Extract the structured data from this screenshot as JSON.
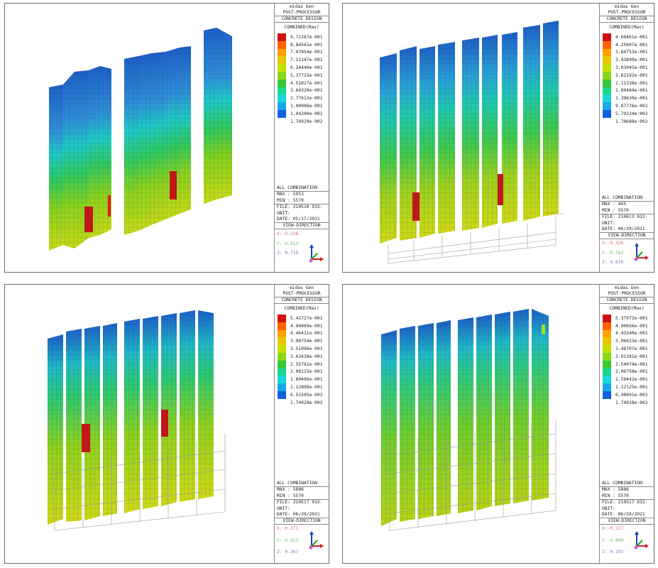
{
  "legend_colors": [
    "#d01010",
    "#ff6400",
    "#ffa200",
    "#e6c800",
    "#c8e000",
    "#88d818",
    "#38c838",
    "#18d890",
    "#18d8d8",
    "#18a8e8",
    "#1060e0"
  ],
  "panels": [
    {
      "app": "midas Gen",
      "module": "POST-PROCESSOR",
      "design": "CONCRETE DESIGN",
      "result": "COMBINED(Max)",
      "values": [
        "9.71267e-001",
        "8.84561e-001",
        "7.97854e-001",
        "7.11147e-001",
        "6.24440e-001",
        "5.37733e-001",
        "4.51027e-001",
        "3.64320e-001",
        "2.77613e-001",
        "1.90906e-001",
        "1.04200e-001",
        "1.74929e-002"
      ],
      "combination": "ALL COMBINATION",
      "max": "MAX : 5953",
      "min": "MIN : 5570",
      "file": "FILE: 210510 932-",
      "unit": "UNIT:",
      "date": "DATE: 05/17/2021",
      "view_title": "VIEW-DIRECTION",
      "vx": "X:-0.326",
      "vy": "Y:-0.613",
      "vz": "Z: 0.719"
    },
    {
      "app": "midas Gen",
      "module": "POST-PROCESSOR",
      "design": "CONCRETE DESIGN",
      "result": "COMBINED(Max)",
      "values": [
        "4.66461e-001",
        "4.25607e-001",
        "3.84753e-001",
        "3.43899e-001",
        "3.03045e-001",
        "2.62192e-001",
        "2.21338e-001",
        "1.80484e-001",
        "1.39630e-001",
        "9.87776e-002",
        "5.79224e-002",
        "1.70688e-002"
      ],
      "combination": "ALL COMBINATION",
      "max": "MAX : 445",
      "min": "MIN : 5570",
      "file": "FILE: 210613 932-",
      "unit": "UNIT:",
      "date": "DATE: 06/29/2021",
      "view_title": "VIEW-DIRECTION",
      "vx": "X:-0.326",
      "vy": "Y:-0.762",
      "vz": "Z: 0.616"
    },
    {
      "app": "midas Gen",
      "module": "POST-PROCESSOR",
      "design": "CONCRETE DESIGN",
      "result": "COMBINED(Max)",
      "values": [
        "5.41727e-001",
        "4.94069e-001",
        "4.46411e-001",
        "3.98754e-001",
        "3.51096e-001",
        "3.03439e-001",
        "2.55781e-001",
        "2.08123e-001",
        "1.60466e-001",
        "1.12808e-001",
        "6.51505e-002",
        "1.74929e-002"
      ],
      "combination": "ALL COMBINATION",
      "max": "MAX : 5886",
      "min": "MIN : 5570",
      "file": "FILE: 210517 932-",
      "unit": "UNIT:",
      "date": "DATE: 06/29/2021",
      "view_title": "VIEW-DIRECTION",
      "vx": "X:-0.371",
      "vy": "Y:-0.852",
      "vz": "Z: 0.367"
    },
    {
      "app": "midas Gen",
      "module": "POST-PROCESSOR",
      "design": "CONCRETE DESIGN",
      "result": "COMBINED(Max)",
      "values": [
        "5.37972e-001",
        "4.90656e-001",
        "4.43340e-001",
        "3.96023e-001",
        "3.48707e-001",
        "3.01391e-001",
        "2.54074e-001",
        "2.06758e-001",
        "1.59442e-001",
        "1.12125e-001",
        "6.48091e-002",
        "1.74928e-002"
      ],
      "combination": "ALL COMBINATION",
      "max": "MAX : 5886",
      "min": "MIN : 5570",
      "file": "FILE: 210517 932-",
      "unit": "UNIT:",
      "date": "DATE: 06/29/2021",
      "view_title": "VIEW-DIRECTION",
      "vx": "X:-0.327",
      "vy": "Y:-0.899",
      "vz": "Z: 0.293"
    }
  ]
}
